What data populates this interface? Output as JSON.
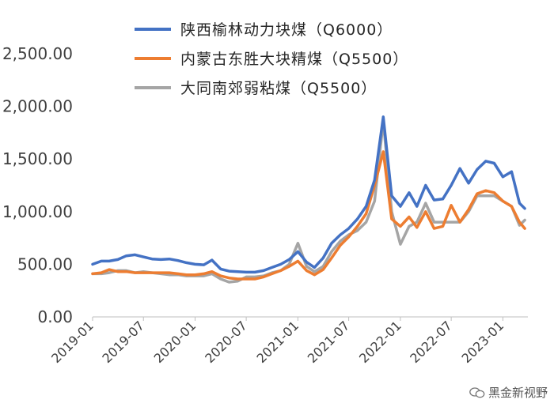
{
  "chart_data": {
    "type": "line",
    "title": "",
    "xlabel": "",
    "ylabel": "",
    "ylim": [
      0,
      2500
    ],
    "y_ticks": [
      "0.00",
      "500.00",
      "1,000.00",
      "1,500.00",
      "2,000.00",
      "2,500.00"
    ],
    "x_ticks": [
      "2019-01",
      "2019-07",
      "2020-01",
      "2020-07",
      "2021-01",
      "2021-07",
      "2022-01",
      "2022-07",
      "2023-01"
    ],
    "grid": false,
    "legend_position": "top",
    "series": [
      {
        "name": "陕西榆林动力块煤（Q6000）",
        "color": "#4472C4",
        "points": [
          [
            "2019-01-01",
            500
          ],
          [
            "2019-02-01",
            530
          ],
          [
            "2019-03-01",
            530
          ],
          [
            "2019-04-01",
            545
          ],
          [
            "2019-05-01",
            580
          ],
          [
            "2019-06-01",
            590
          ],
          [
            "2019-07-01",
            570
          ],
          [
            "2019-08-01",
            550
          ],
          [
            "2019-09-01",
            545
          ],
          [
            "2019-10-01",
            550
          ],
          [
            "2019-11-01",
            535
          ],
          [
            "2019-12-01",
            515
          ],
          [
            "2020-01-01",
            500
          ],
          [
            "2020-02-01",
            495
          ],
          [
            "2020-03-01",
            540
          ],
          [
            "2020-04-01",
            455
          ],
          [
            "2020-05-01",
            435
          ],
          [
            "2020-06-01",
            430
          ],
          [
            "2020-07-01",
            425
          ],
          [
            "2020-08-01",
            425
          ],
          [
            "2020-09-01",
            440
          ],
          [
            "2020-10-01",
            470
          ],
          [
            "2020-11-01",
            500
          ],
          [
            "2020-12-01",
            545
          ],
          [
            "2021-01-01",
            620
          ],
          [
            "2021-02-01",
            520
          ],
          [
            "2021-03-01",
            470
          ],
          [
            "2021-04-01",
            560
          ],
          [
            "2021-05-01",
            700
          ],
          [
            "2021-06-01",
            780
          ],
          [
            "2021-07-01",
            840
          ],
          [
            "2021-08-01",
            930
          ],
          [
            "2021-09-01",
            1050
          ],
          [
            "2021-10-01",
            1300
          ],
          [
            "2021-11-01",
            1900
          ],
          [
            "2021-12-01",
            1150
          ],
          [
            "2022-01-01",
            1050
          ],
          [
            "2022-02-01",
            1180
          ],
          [
            "2022-03-01",
            1050
          ],
          [
            "2022-04-01",
            1250
          ],
          [
            "2022-05-01",
            1110
          ],
          [
            "2022-06-01",
            1120
          ],
          [
            "2022-07-01",
            1250
          ],
          [
            "2022-08-01",
            1410
          ],
          [
            "2022-09-01",
            1270
          ],
          [
            "2022-10-01",
            1400
          ],
          [
            "2022-11-01",
            1480
          ],
          [
            "2022-12-01",
            1460
          ],
          [
            "2023-01-01",
            1330
          ],
          [
            "2023-02-01",
            1380
          ],
          [
            "2023-03-01",
            1080
          ],
          [
            "2023-03-20",
            1030
          ]
        ]
      },
      {
        "name": "内蒙古东胜大块精煤（Q5500）",
        "color": "#ED7D31",
        "points": [
          [
            "2019-01-01",
            410
          ],
          [
            "2019-02-01",
            420
          ],
          [
            "2019-03-01",
            450
          ],
          [
            "2019-04-01",
            430
          ],
          [
            "2019-05-01",
            430
          ],
          [
            "2019-06-01",
            420
          ],
          [
            "2019-07-01",
            420
          ],
          [
            "2019-08-01",
            420
          ],
          [
            "2019-09-01",
            420
          ],
          [
            "2019-10-01",
            420
          ],
          [
            "2019-11-01",
            410
          ],
          [
            "2019-12-01",
            400
          ],
          [
            "2020-01-01",
            400
          ],
          [
            "2020-02-01",
            410
          ],
          [
            "2020-03-01",
            430
          ],
          [
            "2020-04-01",
            390
          ],
          [
            "2020-05-01",
            370
          ],
          [
            "2020-06-01",
            360
          ],
          [
            "2020-07-01",
            360
          ],
          [
            "2020-08-01",
            360
          ],
          [
            "2020-09-01",
            380
          ],
          [
            "2020-10-01",
            410
          ],
          [
            "2020-11-01",
            440
          ],
          [
            "2020-12-01",
            480
          ],
          [
            "2021-01-01",
            530
          ],
          [
            "2021-02-01",
            440
          ],
          [
            "2021-03-01",
            400
          ],
          [
            "2021-04-01",
            450
          ],
          [
            "2021-05-01",
            560
          ],
          [
            "2021-06-01",
            680
          ],
          [
            "2021-07-01",
            760
          ],
          [
            "2021-08-01",
            860
          ],
          [
            "2021-09-01",
            980
          ],
          [
            "2021-10-01",
            1250
          ],
          [
            "2021-11-01",
            1570
          ],
          [
            "2021-12-01",
            930
          ],
          [
            "2022-01-01",
            860
          ],
          [
            "2022-02-01",
            950
          ],
          [
            "2022-03-01",
            850
          ],
          [
            "2022-04-01",
            1000
          ],
          [
            "2022-05-01",
            840
          ],
          [
            "2022-06-01",
            860
          ],
          [
            "2022-07-01",
            1060
          ],
          [
            "2022-08-01",
            900
          ],
          [
            "2022-09-01",
            1020
          ],
          [
            "2022-10-01",
            1170
          ],
          [
            "2022-11-01",
            1200
          ],
          [
            "2022-12-01",
            1180
          ],
          [
            "2023-01-01",
            1100
          ],
          [
            "2023-02-01",
            1050
          ],
          [
            "2023-03-01",
            900
          ],
          [
            "2023-03-20",
            840
          ]
        ]
      },
      {
        "name": "大同南郊弱粘煤（Q5500）",
        "color": "#A5A5A5",
        "points": [
          [
            "2019-01-01",
            410
          ],
          [
            "2019-02-01",
            410
          ],
          [
            "2019-03-01",
            420
          ],
          [
            "2019-04-01",
            440
          ],
          [
            "2019-05-01",
            440
          ],
          [
            "2019-06-01",
            420
          ],
          [
            "2019-07-01",
            430
          ],
          [
            "2019-08-01",
            420
          ],
          [
            "2019-09-01",
            410
          ],
          [
            "2019-10-01",
            400
          ],
          [
            "2019-11-01",
            400
          ],
          [
            "2019-12-01",
            390
          ],
          [
            "2020-01-01",
            390
          ],
          [
            "2020-02-01",
            390
          ],
          [
            "2020-03-01",
            410
          ],
          [
            "2020-04-01",
            360
          ],
          [
            "2020-05-01",
            330
          ],
          [
            "2020-06-01",
            340
          ],
          [
            "2020-07-01",
            380
          ],
          [
            "2020-08-01",
            380
          ],
          [
            "2020-09-01",
            390
          ],
          [
            "2020-10-01",
            420
          ],
          [
            "2020-11-01",
            440
          ],
          [
            "2020-12-01",
            500
          ],
          [
            "2021-01-01",
            700
          ],
          [
            "2021-02-01",
            480
          ],
          [
            "2021-03-01",
            430
          ],
          [
            "2021-04-01",
            480
          ],
          [
            "2021-05-01",
            620
          ],
          [
            "2021-06-01",
            720
          ],
          [
            "2021-07-01",
            780
          ],
          [
            "2021-08-01",
            820
          ],
          [
            "2021-09-01",
            900
          ],
          [
            "2021-10-01",
            1100
          ],
          [
            "2021-11-01",
            1860
          ],
          [
            "2021-12-01",
            1000
          ],
          [
            "2022-01-01",
            690
          ],
          [
            "2022-02-01",
            860
          ],
          [
            "2022-03-01",
            900
          ],
          [
            "2022-04-01",
            1080
          ],
          [
            "2022-05-01",
            900
          ],
          [
            "2022-06-01",
            900
          ],
          [
            "2022-07-01",
            900
          ],
          [
            "2022-08-01",
            900
          ],
          [
            "2022-09-01",
            1000
          ],
          [
            "2022-10-01",
            1150
          ],
          [
            "2022-11-01",
            1150
          ],
          [
            "2022-12-01",
            1150
          ],
          [
            "2023-01-01",
            1100
          ],
          [
            "2023-02-01",
            1050
          ],
          [
            "2023-03-01",
            870
          ],
          [
            "2023-03-20",
            920
          ]
        ]
      }
    ]
  },
  "watermark": {
    "text": "黑金新视野",
    "icon": "wechat-icon"
  }
}
